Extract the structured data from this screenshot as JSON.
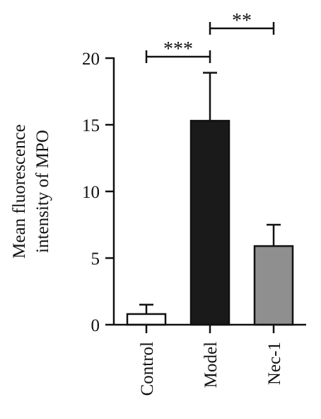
{
  "chart_data": {
    "type": "bar",
    "ylabel_lines": [
      "Mean fluorescence",
      "intensity of MPO"
    ],
    "categories": [
      "Control",
      "Model",
      "Nec-1"
    ],
    "values": [
      0.8,
      15.3,
      5.9
    ],
    "errors": [
      0.7,
      3.6,
      1.6
    ],
    "bar_colors": [
      "#ffffff",
      "#1a1a1a",
      "#8f8f8f"
    ],
    "yticks": [
      0,
      5,
      10,
      15,
      20
    ],
    "ylim": [
      0,
      20
    ],
    "significance": [
      {
        "from": 0,
        "to": 1,
        "label": "***"
      },
      {
        "from": 1,
        "to": 2,
        "label": "**"
      }
    ]
  }
}
